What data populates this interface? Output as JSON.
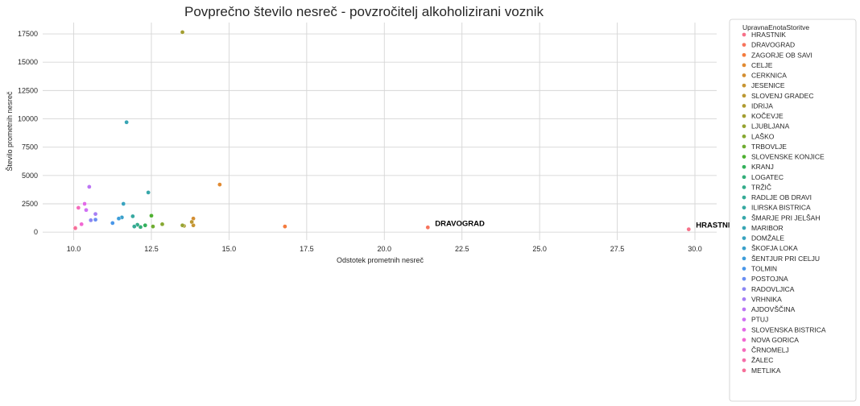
{
  "chart_data": {
    "type": "scatter",
    "title": "Povprečno število nesreč - povzročitelj alkoholizirani voznik",
    "xlabel": "Odstotek prometnih nesreč",
    "ylabel": "Število prometnih nesreč",
    "xlim": [
      9.0,
      30.7
    ],
    "ylim": [
      -700,
      18500
    ],
    "xticks": [
      10.0,
      12.5,
      15.0,
      17.5,
      20.0,
      22.5,
      25.0,
      27.5,
      30.0
    ],
    "xtick_labels": [
      "10.0",
      "12.5",
      "15.0",
      "17.5",
      "20.0",
      "22.5",
      "25.0",
      "27.5",
      "30.0"
    ],
    "yticks": [
      0,
      2500,
      5000,
      7500,
      10000,
      12500,
      15000,
      17500
    ],
    "ytick_labels": [
      "0",
      "2500",
      "5000",
      "7500",
      "10000",
      "12500",
      "15000",
      "17500"
    ],
    "grid": true,
    "legend": {
      "title": "UpravnaEnotaStoritve",
      "placement": "outside-right"
    },
    "series": [
      {
        "name": "HRASTNIK",
        "color": "#f77189",
        "x": 29.8,
        "y": 250
      },
      {
        "name": "DRAVOGRAD",
        "color": "#f7745d",
        "x": 21.4,
        "y": 420
      },
      {
        "name": "ZAGORJE OB SAVI",
        "color": "#f47b3e",
        "x": 16.8,
        "y": 500
      },
      {
        "name": "CELJE",
        "color": "#e18a31",
        "x": 14.7,
        "y": 4200
      },
      {
        "name": "CERKNICA",
        "color": "#d38e32",
        "x": 13.85,
        "y": 1200
      },
      {
        "name": "JESENICE",
        "color": "#c79532",
        "x": 13.85,
        "y": 600
      },
      {
        "name": "SLOVENJ GRADEC",
        "color": "#bb9832",
        "x": 13.8,
        "y": 900
      },
      {
        "name": "IDRIJA",
        "color": "#af9b31",
        "x": 13.55,
        "y": 550
      },
      {
        "name": "KOČEVJE",
        "color": "#a39e31",
        "x": 13.5,
        "y": 17650
      },
      {
        "name": "LJUBLJANA",
        "color": "#96a331",
        "x": 13.5,
        "y": 600
      },
      {
        "name": "LAŠKO",
        "color": "#86a831",
        "x": 12.85,
        "y": 700
      },
      {
        "name": "TRBOVLJE",
        "color": "#6fac31",
        "x": 12.55,
        "y": 500
      },
      {
        "name": "SLOVENSKE KONJICE",
        "color": "#4fb031",
        "x": 12.5,
        "y": 1450
      },
      {
        "name": "KRANJ",
        "color": "#33b05b",
        "x": 12.3,
        "y": 600
      },
      {
        "name": "LOGATEC",
        "color": "#34ae7a",
        "x": 12.15,
        "y": 450
      },
      {
        "name": "TRŽIČ",
        "color": "#35ac8b",
        "x": 12.05,
        "y": 650
      },
      {
        "name": "RADLJE OB DRAVI",
        "color": "#36aa96",
        "x": 11.95,
        "y": 500
      },
      {
        "name": "ILIRSKA BISTRICA",
        "color": "#37a9a1",
        "x": 11.9,
        "y": 1400
      },
      {
        "name": "ŠMARJE PRI JELŠAH",
        "color": "#37a7aa",
        "x": 12.4,
        "y": 3500
      },
      {
        "name": "MARIBOR",
        "color": "#38a5b4",
        "x": 11.7,
        "y": 9700
      },
      {
        "name": "DOMŽALE",
        "color": "#39a3bf",
        "x": 11.6,
        "y": 2500
      },
      {
        "name": "ŠKOFJA LOKA",
        "color": "#3aa0ca",
        "x": 11.55,
        "y": 1300
      },
      {
        "name": "ŠENTJUR PRI CELJU",
        "color": "#3d9dd9",
        "x": 11.45,
        "y": 1200
      },
      {
        "name": "TOLMIN",
        "color": "#4997e9",
        "x": 11.25,
        "y": 800
      },
      {
        "name": "POSTOJNA",
        "color": "#6a8ef2",
        "x": 10.7,
        "y": 1100
      },
      {
        "name": "RADOVLJICA",
        "color": "#8b87f3",
        "x": 10.55,
        "y": 1050
      },
      {
        "name": "VRHNIKA",
        "color": "#a67ef4",
        "x": 10.7,
        "y": 1600
      },
      {
        "name": "AJDOVŠČINA",
        "color": "#bc75f4",
        "x": 10.5,
        "y": 4000
      },
      {
        "name": "PTUJ",
        "color": "#d070f4",
        "x": 10.4,
        "y": 1950
      },
      {
        "name": "SLOVENSKA BISTRICA",
        "color": "#e36ae8",
        "x": 10.35,
        "y": 2500
      },
      {
        "name": "NOVA GORICA",
        "color": "#f268d2",
        "x": 10.25,
        "y": 700
      },
      {
        "name": "ČRNOMELJ",
        "color": "#f56cbd",
        "x": 10.15,
        "y": 2150
      },
      {
        "name": "ŽALEC",
        "color": "#f56ea9",
        "x": 10.05,
        "y": 400
      },
      {
        "name": "METLIKA",
        "color": "#f66f99",
        "x": 10.05,
        "y": 350
      }
    ],
    "annotations": [
      {
        "text": "DRAVOGRAD",
        "x": 21.4,
        "y": 420
      },
      {
        "text": "HRASTNIK",
        "x": 29.8,
        "y": 250
      }
    ]
  }
}
